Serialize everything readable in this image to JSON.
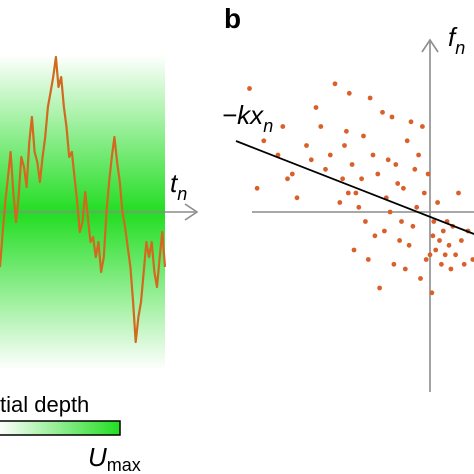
{
  "panel_a": {
    "time_axis_label": "t",
    "time_axis_sub": "n",
    "colorbar_title": "tial depth",
    "colorbar_max_label": "U",
    "colorbar_max_sub": "max",
    "well_color": "#22dd22",
    "trace_color": "#d2691e"
  },
  "panel_b": {
    "panel_letter": "b",
    "y_axis_label": "f",
    "y_axis_sub": "n",
    "fit_line_label": "−kx",
    "fit_line_sub": "n",
    "point_color": "#d9602a"
  },
  "chart_data": [
    {
      "type": "line",
      "panel": "a",
      "xlabel": "t_n",
      "ylabel": "",
      "series": [
        {
          "values": [
            -0.55,
            -0.2,
            0.1,
            0.35,
            0.6,
            0.2,
            -0.1,
            0.15,
            0.55,
            0.45,
            0.25,
            0.7,
            0.95,
            0.6,
            0.5,
            0.3,
            0.55,
            0.75,
            1.05,
            1.2,
            1.35,
            1.55,
            1.25,
            1.35,
            1.05,
            0.85,
            0.55,
            0.6,
            0.35,
            0.1,
            -0.2,
            -0.1,
            0.2,
            -0.05,
            -0.3,
            -0.25,
            -0.45,
            -0.3,
            -0.6,
            -0.45,
            0.0,
            0.3,
            0.55,
            0.75,
            0.5,
            0.3,
            0.0,
            -0.15,
            -0.35,
            -0.55,
            -0.9,
            -1.3,
            -1.05,
            -0.9,
            -0.6,
            -0.3,
            -0.45,
            -0.3,
            -0.6,
            -0.75,
            -0.45,
            -0.2,
            -0.55
          ]
        }
      ]
    },
    {
      "type": "scatter",
      "panel": "b",
      "xlabel": "",
      "ylabel": "f_n",
      "line_label": "−kx_n",
      "points": [
        [
          -1.9,
          1.3
        ],
        [
          -1.82,
          0.25
        ],
        [
          -1.75,
          0.75
        ],
        [
          -1.6,
          0.6
        ],
        [
          -1.55,
          0.9
        ],
        [
          -1.5,
          0.35
        ],
        [
          -1.45,
          0.4
        ],
        [
          -1.4,
          0.15
        ],
        [
          -1.3,
          0.7
        ],
        [
          -1.25,
          0.55
        ],
        [
          -1.2,
          1.1
        ],
        [
          -1.15,
          0.9
        ],
        [
          -1.1,
          0.45
        ],
        [
          -1.05,
          0.6
        ],
        [
          -1.0,
          1.35
        ],
        [
          -0.95,
          0.1
        ],
        [
          -0.92,
          0.35
        ],
        [
          -0.9,
          0.7
        ],
        [
          -0.88,
          0.85
        ],
        [
          -0.86,
          0.2
        ],
        [
          -0.85,
          1.25
        ],
        [
          -0.82,
          0.5
        ],
        [
          -0.8,
          -0.4
        ],
        [
          -0.78,
          0.2
        ],
        [
          -0.75,
          0.05
        ],
        [
          -0.72,
          0.35
        ],
        [
          -0.7,
          0.8
        ],
        [
          -0.68,
          -0.1
        ],
        [
          -0.65,
          -0.5
        ],
        [
          -0.63,
          1.2
        ],
        [
          -0.6,
          0.6
        ],
        [
          -0.58,
          -0.25
        ],
        [
          -0.55,
          0.4
        ],
        [
          -0.53,
          -0.8
        ],
        [
          -0.5,
          1.05
        ],
        [
          -0.48,
          -0.2
        ],
        [
          -0.46,
          0.15
        ],
        [
          -0.44,
          0.55
        ],
        [
          -0.42,
          0.0
        ],
        [
          -0.4,
          1.0
        ],
        [
          -0.38,
          -0.55
        ],
        [
          -0.36,
          0.5
        ],
        [
          -0.34,
          0.3
        ],
        [
          -0.32,
          -0.3
        ],
        [
          -0.3,
          -0.1
        ],
        [
          -0.28,
          0.25
        ],
        [
          -0.26,
          -0.6
        ],
        [
          -0.24,
          0.75
        ],
        [
          -0.22,
          -0.35
        ],
        [
          -0.2,
          0.95
        ],
        [
          -0.18,
          -0.15
        ],
        [
          -0.16,
          0.45
        ],
        [
          -0.14,
          0.05
        ],
        [
          -0.12,
          0.6
        ],
        [
          -0.1,
          -0.7
        ],
        [
          -0.08,
          0.9
        ],
        [
          -0.06,
          0.2
        ],
        [
          -0.04,
          -0.5
        ],
        [
          -0.02,
          0.4
        ],
        [
          0.0,
          -0.45
        ],
        [
          0.02,
          -0.85
        ],
        [
          0.03,
          -0.25
        ],
        [
          0.04,
          -0.1
        ],
        [
          0.06,
          -0.4
        ],
        [
          0.08,
          0.1
        ],
        [
          0.1,
          -0.3
        ],
        [
          0.12,
          -0.55
        ],
        [
          0.14,
          -0.2
        ],
        [
          0.16,
          -0.45
        ],
        [
          0.18,
          -0.1
        ],
        [
          0.2,
          -0.35
        ],
        [
          0.22,
          -0.6
        ],
        [
          0.24,
          -0.15
        ],
        [
          0.27,
          -0.45
        ],
        [
          0.3,
          0.2
        ],
        [
          0.33,
          -0.3
        ],
        [
          0.36,
          -0.55
        ],
        [
          0.4,
          -0.2
        ],
        [
          0.45,
          -0.5
        ],
        [
          0.5,
          -0.35
        ]
      ]
    }
  ]
}
